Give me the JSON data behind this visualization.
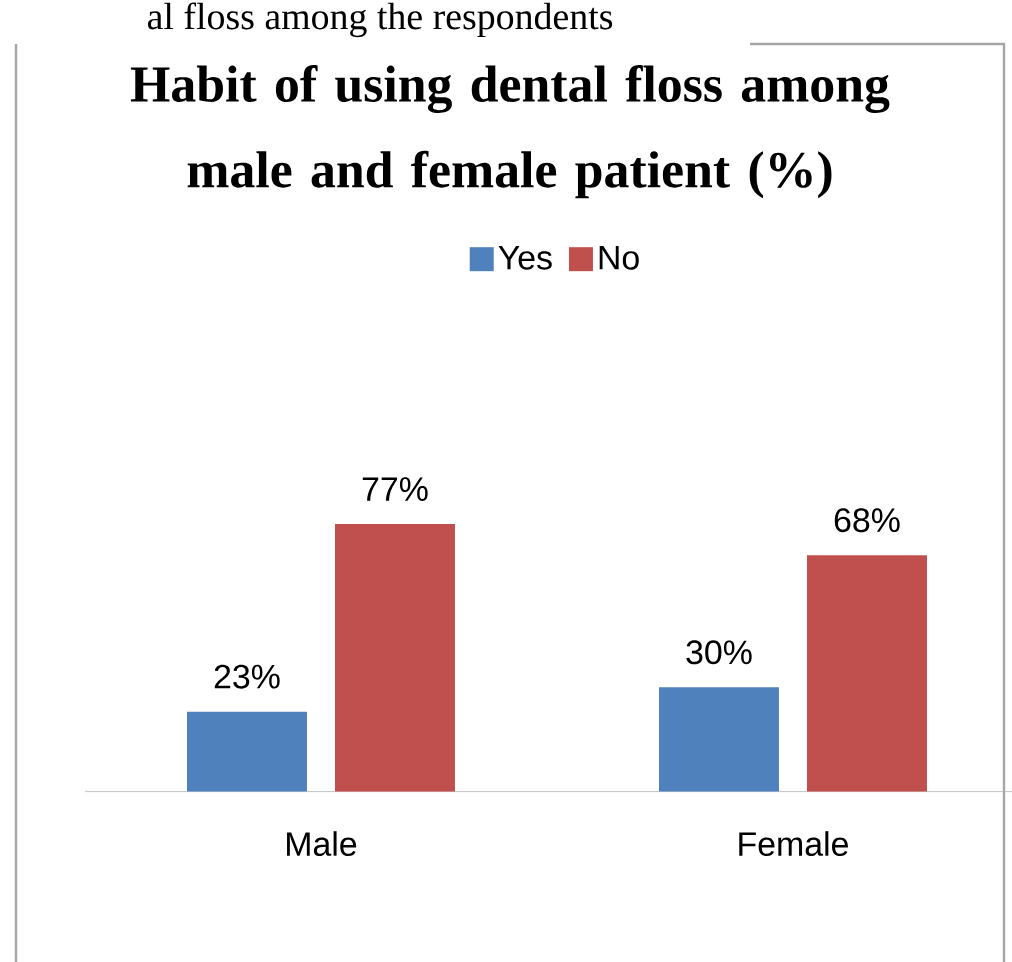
{
  "chart_data": {
    "type": "bar",
    "title": "Habit of using dental floss among male and female patient (%)",
    "categories": [
      "Male",
      "Female"
    ],
    "series": [
      {
        "name": "Yes",
        "color": "#4f81bd",
        "values": [
          23,
          30
        ],
        "value_labels": [
          "23%",
          "30%"
        ]
      },
      {
        "name": "No",
        "color": "#c0504d",
        "values": [
          77,
          68
        ],
        "value_labels": [
          "77%",
          "68%"
        ]
      }
    ],
    "legend": "top",
    "annotations": [
      "al floss among the respondents"
    ]
  }
}
